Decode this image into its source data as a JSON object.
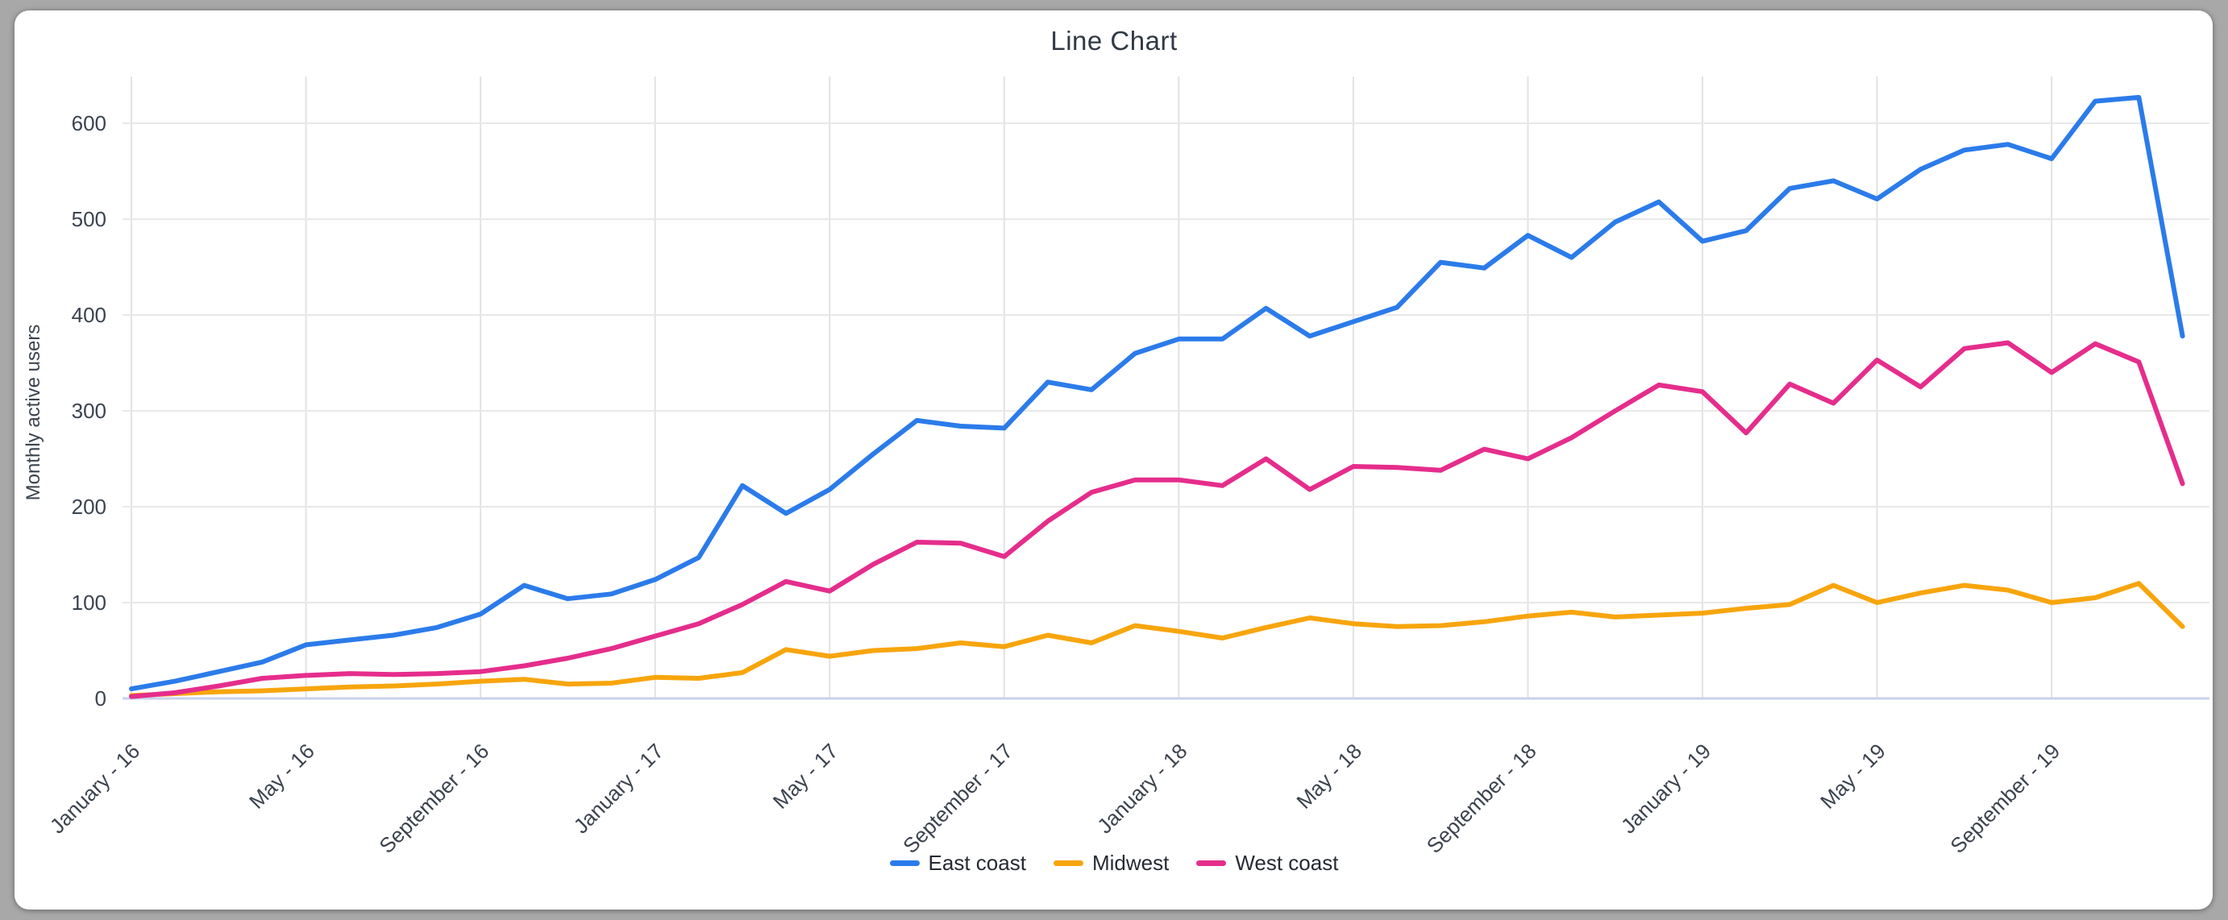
{
  "title": "Line Chart",
  "y_axis": {
    "title": "Monthly active users",
    "ticks": [
      0,
      100,
      200,
      300,
      400,
      500,
      600
    ]
  },
  "x_axis": {
    "visible_tick_labels": [
      "January - 16",
      "May - 16",
      "September - 16",
      "January - 17",
      "May - 17",
      "September - 17",
      "January - 18",
      "May - 18",
      "September - 18",
      "January - 19",
      "May - 19",
      "September - 19"
    ],
    "tick_every": 4
  },
  "legend": {
    "items": [
      {
        "label": "East coast"
      },
      {
        "label": "Midwest"
      },
      {
        "label": "West coast"
      }
    ]
  },
  "colors": {
    "east_coast": "#2b7bea",
    "midwest": "#f7a50d",
    "west_coast": "#e52d8c",
    "grid_vertical": "#e2e2e2",
    "grid_horizontal": "#e8e8e8",
    "axis_baseline": "#c9d2ec",
    "tick_text": "#3b434e",
    "page_background": "#a8a8a8",
    "card_background": "#ffffff"
  },
  "chart_data": {
    "type": "line",
    "title": "Line Chart",
    "ylabel": "Monthly active users",
    "xlabel": "",
    "ylim": [
      0,
      640
    ],
    "yticks": [
      0,
      100,
      200,
      300,
      400,
      500,
      600
    ],
    "grid": true,
    "legend_position": "bottom",
    "x": [
      "January - 16",
      "February - 16",
      "March - 16",
      "April - 16",
      "May - 16",
      "June - 16",
      "July - 16",
      "August - 16",
      "September - 16",
      "October - 16",
      "November - 16",
      "December - 16",
      "January - 17",
      "February - 17",
      "March - 17",
      "April - 17",
      "May - 17",
      "June - 17",
      "July - 17",
      "August - 17",
      "September - 17",
      "October - 17",
      "November - 17",
      "December - 17",
      "January - 18",
      "February - 18",
      "March - 18",
      "April - 18",
      "May - 18",
      "June - 18",
      "July - 18",
      "August - 18",
      "September - 18",
      "October - 18",
      "November - 18",
      "December - 18",
      "January - 19",
      "February - 19",
      "March - 19",
      "April - 19",
      "May - 19",
      "June - 19",
      "July - 19",
      "August - 19",
      "September - 19",
      "October - 19",
      "November - 19",
      "December - 19"
    ],
    "series": [
      {
        "name": "East coast",
        "color": "#2b7bea",
        "values": [
          10,
          18,
          28,
          38,
          56,
          61,
          66,
          74,
          88,
          118,
          104,
          109,
          124,
          147,
          222,
          193,
          218,
          255,
          290,
          284,
          282,
          330,
          322,
          360,
          375,
          375,
          407,
          378,
          393,
          408,
          455,
          449,
          483,
          460,
          497,
          518,
          477,
          488,
          532,
          540,
          521,
          552,
          572,
          578,
          563,
          623,
          627,
          378
        ]
      },
      {
        "name": "Midwest",
        "color": "#f7a50d",
        "values": [
          3,
          5,
          7,
          8,
          10,
          12,
          13,
          15,
          18,
          20,
          15,
          16,
          22,
          21,
          27,
          51,
          44,
          50,
          52,
          58,
          54,
          66,
          58,
          76,
          70,
          63,
          74,
          84,
          78,
          75,
          76,
          80,
          86,
          90,
          85,
          87,
          89,
          94,
          98,
          118,
          100,
          110,
          118,
          113,
          100,
          105,
          120,
          75
        ]
      },
      {
        "name": "West coast",
        "color": "#e52d8c",
        "values": [
          2,
          6,
          13,
          21,
          24,
          26,
          25,
          26,
          28,
          34,
          42,
          52,
          65,
          78,
          98,
          122,
          112,
          140,
          163,
          162,
          148,
          185,
          215,
          228,
          228,
          222,
          250,
          218,
          242,
          241,
          238,
          260,
          250,
          272,
          300,
          327,
          320,
          277,
          328,
          308,
          353,
          325,
          365,
          371,
          340,
          370,
          351,
          224
        ]
      }
    ]
  }
}
